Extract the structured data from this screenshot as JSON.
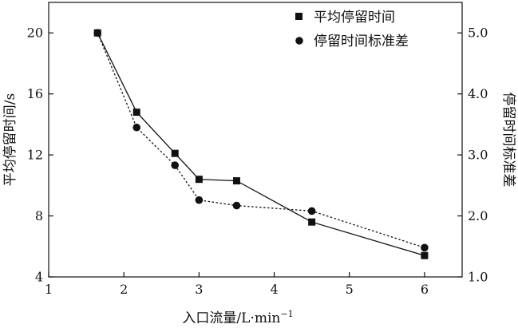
{
  "chart_data": {
    "type": "line",
    "title": "",
    "xlabel": "入口流量/L·min",
    "xlabel_superscript": "−1",
    "ylabel_left": "平均停留时间/s",
    "ylabel_right": "停留时间标准差",
    "xlim": [
      1,
      6.5
    ],
    "ylim_left": [
      4,
      22
    ],
    "ylim_right": [
      1.0,
      5.5
    ],
    "x_ticks": [
      1,
      2,
      3,
      4,
      5,
      6
    ],
    "x_tick_labels": [
      "1",
      "2",
      "3",
      "4",
      "5",
      "6"
    ],
    "y_left_ticks": [
      4,
      8,
      12,
      16,
      20
    ],
    "y_left_tick_labels": [
      "4",
      "8",
      "12",
      "16",
      "20"
    ],
    "y_right_ticks": [
      1.0,
      2.0,
      3.0,
      4.0,
      5.0
    ],
    "y_right_tick_labels": [
      "1.0",
      "2.0",
      "3.0",
      "4.0",
      "5.0"
    ],
    "legend_position": "top-right",
    "grid": false,
    "series": [
      {
        "name": "平均停留时间",
        "axis": "left",
        "marker": "square",
        "line": "solid",
        "x": [
          1.65,
          2.17,
          2.68,
          3.0,
          3.5,
          4.5,
          6.0
        ],
        "y": [
          20.0,
          14.8,
          12.1,
          10.4,
          10.3,
          7.6,
          5.4
        ]
      },
      {
        "name": "停留时间标准差",
        "axis": "right",
        "marker": "circle",
        "line": "dotted",
        "x": [
          1.65,
          2.17,
          2.68,
          3.0,
          3.5,
          4.5,
          6.0
        ],
        "y": [
          5.0,
          3.45,
          2.83,
          2.26,
          2.17,
          2.08,
          1.48
        ]
      }
    ]
  }
}
